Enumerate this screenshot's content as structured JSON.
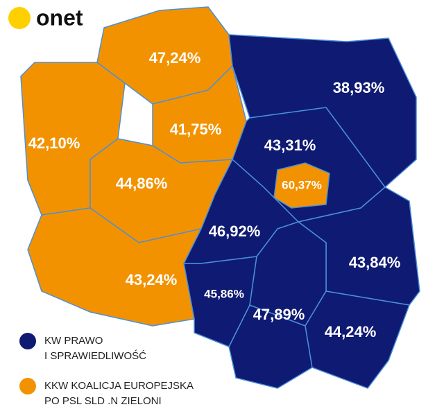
{
  "logo": "onet",
  "regions": [
    {
      "label": "47,24%",
      "color": "#f39200"
    },
    {
      "label": "42,10%",
      "color": "#f39200"
    },
    {
      "label": "41,75%",
      "color": "#f39200"
    },
    {
      "label": "44,86%",
      "color": "#f39200"
    },
    {
      "label": "43,24%",
      "color": "#f39200"
    },
    {
      "label": "38,93%",
      "color": "#0f1a72"
    },
    {
      "label": "43,31%",
      "color": "#0f1a72"
    },
    {
      "label": "46,92%",
      "color": "#0f1a72"
    },
    {
      "label": "43,84%",
      "color": "#0f1a72"
    },
    {
      "label": "45,86%",
      "color": "#0f1a72"
    },
    {
      "label": "47,89%",
      "color": "#0f1a72"
    },
    {
      "label": "44,24%",
      "color": "#0f1a72"
    },
    {
      "label": "60,37%",
      "color": "#f39200"
    }
  ],
  "legend": [
    {
      "lines": [
        "KW PRAWO",
        "I SPRAWIEDLIWOŚĆ"
      ],
      "color": "#0f1a72"
    },
    {
      "lines": [
        "KKW KOALICJA EUROPEJSKA",
        "PO PSL SLD .N ZIELONI"
      ],
      "color": "#f39200"
    }
  ]
}
